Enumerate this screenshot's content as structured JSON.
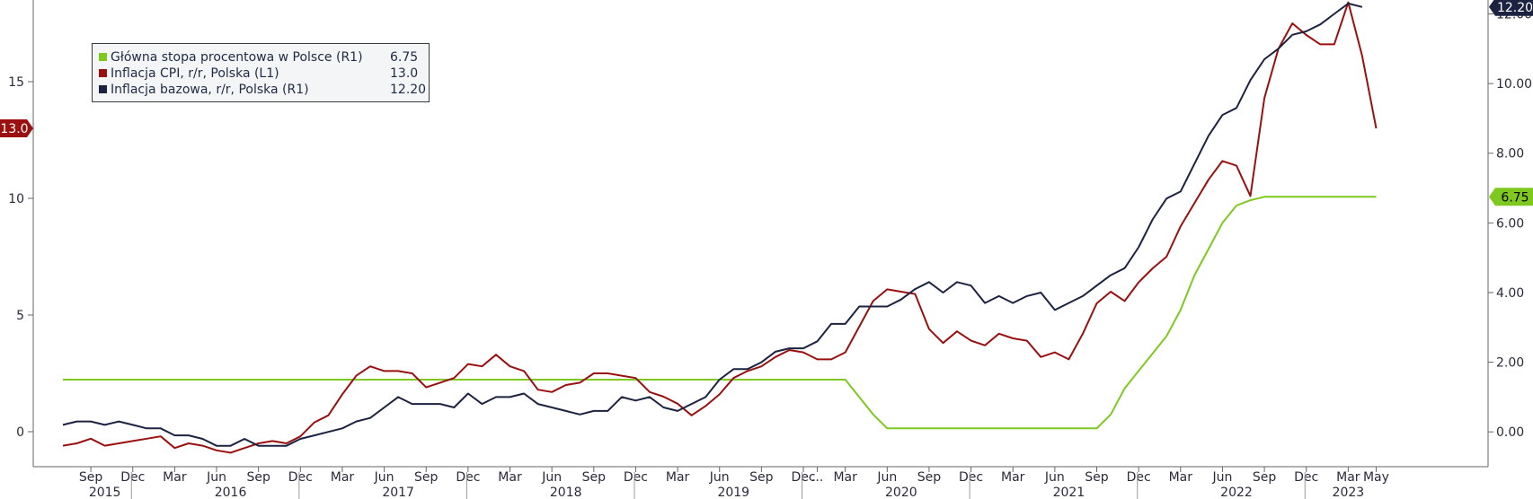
{
  "chart_data": {
    "type": "line",
    "title": "",
    "xlabel": "",
    "ylabel": "",
    "left_axis": {
      "ylim": [
        -1.5,
        18.5
      ],
      "ticks": [
        0,
        5,
        10,
        15
      ]
    },
    "right_axis": {
      "ylim": [
        -1.0,
        12.4
      ],
      "ticks": [
        "0.00",
        "2.00",
        "4.00",
        "6.00",
        "8.00",
        "10.00",
        "12.00"
      ]
    },
    "x_range": [
      "2015-07",
      "2023-06"
    ],
    "month_labels": [
      {
        "label": "Sep",
        "date": "2015-09"
      },
      {
        "label": "Dec",
        "date": "2015-12"
      },
      {
        "label": "Mar",
        "date": "2016-03"
      },
      {
        "label": "Jun",
        "date": "2016-06"
      },
      {
        "label": "Sep",
        "date": "2016-09"
      },
      {
        "label": "Dec",
        "date": "2016-12"
      },
      {
        "label": "Mar",
        "date": "2017-03"
      },
      {
        "label": "Jun",
        "date": "2017-06"
      },
      {
        "label": "Sep",
        "date": "2017-09"
      },
      {
        "label": "Dec",
        "date": "2017-12"
      },
      {
        "label": "Mar",
        "date": "2018-03"
      },
      {
        "label": "Jun",
        "date": "2018-06"
      },
      {
        "label": "Sep",
        "date": "2018-09"
      },
      {
        "label": "Dec",
        "date": "2018-12"
      },
      {
        "label": "Mar",
        "date": "2019-03"
      },
      {
        "label": "Jun",
        "date": "2019-06"
      },
      {
        "label": "Sep",
        "date": "2019-09"
      },
      {
        "label": "Dec",
        "date": "2019-12"
      },
      {
        "label": "...",
        "date": "2020-01"
      },
      {
        "label": "Mar",
        "date": "2020-03"
      },
      {
        "label": "Jun",
        "date": "2020-06"
      },
      {
        "label": "Sep",
        "date": "2020-09"
      },
      {
        "label": "Dec",
        "date": "2020-12"
      },
      {
        "label": "Mar",
        "date": "2021-03"
      },
      {
        "label": "Jun",
        "date": "2021-06"
      },
      {
        "label": "Sep",
        "date": "2021-09"
      },
      {
        "label": "Dec",
        "date": "2021-12"
      },
      {
        "label": "Mar",
        "date": "2022-03"
      },
      {
        "label": "Jun",
        "date": "2022-06"
      },
      {
        "label": "Sep",
        "date": "2022-09"
      },
      {
        "label": "Dec",
        "date": "2022-12"
      },
      {
        "label": "Mar",
        "date": "2023-03"
      },
      {
        "label": "May",
        "date": "2023-05"
      }
    ],
    "year_labels": [
      {
        "label": "2015",
        "date": "2015-10"
      },
      {
        "label": "2016",
        "date": "2016-07"
      },
      {
        "label": "2017",
        "date": "2017-07"
      },
      {
        "label": "2018",
        "date": "2018-07"
      },
      {
        "label": "2019",
        "date": "2019-07"
      },
      {
        "label": "2020",
        "date": "2020-07"
      },
      {
        "label": "2021",
        "date": "2021-07"
      },
      {
        "label": "2022",
        "date": "2022-07"
      },
      {
        "label": "2023",
        "date": "2023-03"
      }
    ],
    "year_separators": [
      "2016-01",
      "2017-01",
      "2018-01",
      "2019-01",
      "2020-01",
      "2021-01",
      "2022-01",
      "2023-01"
    ],
    "series": [
      {
        "name": "Główna stopa procentowa w Polsce (R1)",
        "axis": "right",
        "color": "#7ec820",
        "last_value": "6.75",
        "points": [
          [
            "2015-07",
            1.5
          ],
          [
            "2020-03",
            1.5
          ],
          [
            "2020-04",
            1.0
          ],
          [
            "2020-05",
            0.5
          ],
          [
            "2020-06",
            0.1
          ],
          [
            "2021-09",
            0.1
          ],
          [
            "2021-10",
            0.5
          ],
          [
            "2021-11",
            1.25
          ],
          [
            "2021-12",
            1.75
          ],
          [
            "2022-01",
            2.25
          ],
          [
            "2022-02",
            2.75
          ],
          [
            "2022-03",
            3.5
          ],
          [
            "2022-04",
            4.5
          ],
          [
            "2022-05",
            5.25
          ],
          [
            "2022-06",
            6.0
          ],
          [
            "2022-07",
            6.5
          ],
          [
            "2022-08",
            6.65
          ],
          [
            "2022-09",
            6.75
          ],
          [
            "2023-05",
            6.75
          ]
        ]
      },
      {
        "name": "Inflacja CPI, r/r, Polska (L1)",
        "axis": "left",
        "color": "#9a1010",
        "last_value": "13.0",
        "points": [
          [
            "2015-07",
            -0.6
          ],
          [
            "2015-08",
            -0.5
          ],
          [
            "2015-09",
            -0.3
          ],
          [
            "2015-10",
            -0.6
          ],
          [
            "2015-11",
            -0.5
          ],
          [
            "2015-12",
            -0.4
          ],
          [
            "2016-01",
            -0.3
          ],
          [
            "2016-02",
            -0.2
          ],
          [
            "2016-03",
            -0.7
          ],
          [
            "2016-04",
            -0.5
          ],
          [
            "2016-05",
            -0.6
          ],
          [
            "2016-06",
            -0.8
          ],
          [
            "2016-07",
            -0.9
          ],
          [
            "2016-08",
            -0.7
          ],
          [
            "2016-09",
            -0.5
          ],
          [
            "2016-10",
            -0.4
          ],
          [
            "2016-11",
            -0.5
          ],
          [
            "2016-12",
            -0.2
          ],
          [
            "2017-01",
            0.4
          ],
          [
            "2017-02",
            0.7
          ],
          [
            "2017-03",
            1.6
          ],
          [
            "2017-04",
            2.4
          ],
          [
            "2017-05",
            2.8
          ],
          [
            "2017-06",
            2.6
          ],
          [
            "2017-07",
            2.6
          ],
          [
            "2017-08",
            2.5
          ],
          [
            "2017-09",
            1.9
          ],
          [
            "2017-10",
            2.1
          ],
          [
            "2017-11",
            2.3
          ],
          [
            "2017-12",
            2.9
          ],
          [
            "2018-01",
            2.8
          ],
          [
            "2018-02",
            3.3
          ],
          [
            "2018-03",
            2.8
          ],
          [
            "2018-04",
            2.6
          ],
          [
            "2018-05",
            1.8
          ],
          [
            "2018-06",
            1.7
          ],
          [
            "2018-07",
            2.0
          ],
          [
            "2018-08",
            2.1
          ],
          [
            "2018-09",
            2.5
          ],
          [
            "2018-10",
            2.5
          ],
          [
            "2018-11",
            2.4
          ],
          [
            "2018-12",
            2.3
          ],
          [
            "2019-01",
            1.7
          ],
          [
            "2019-02",
            1.5
          ],
          [
            "2019-03",
            1.2
          ],
          [
            "2019-04",
            0.7
          ],
          [
            "2019-05",
            1.1
          ],
          [
            "2019-06",
            1.6
          ],
          [
            "2019-07",
            2.3
          ],
          [
            "2019-08",
            2.6
          ],
          [
            "2019-09",
            2.8
          ],
          [
            "2019-10",
            3.2
          ],
          [
            "2019-11",
            3.5
          ],
          [
            "2019-12",
            3.4
          ],
          [
            "2020-01",
            3.1
          ],
          [
            "2020-02",
            3.1
          ],
          [
            "2020-03",
            3.4
          ],
          [
            "2020-04",
            4.5
          ],
          [
            "2020-05",
            5.6
          ],
          [
            "2020-06",
            6.1
          ],
          [
            "2020-07",
            6.0
          ],
          [
            "2020-08",
            5.9
          ],
          [
            "2020-09",
            4.4
          ],
          [
            "2020-10",
            3.8
          ],
          [
            "2020-11",
            4.3
          ],
          [
            "2020-12",
            3.9
          ],
          [
            "2021-01",
            3.7
          ],
          [
            "2021-02",
            4.2
          ],
          [
            "2021-03",
            4.0
          ],
          [
            "2021-04",
            3.9
          ],
          [
            "2021-05",
            3.2
          ],
          [
            "2021-06",
            3.4
          ],
          [
            "2021-07",
            3.1
          ],
          [
            "2021-08",
            4.2
          ],
          [
            "2021-09",
            5.5
          ],
          [
            "2021-10",
            6.0
          ],
          [
            "2021-11",
            5.6
          ],
          [
            "2021-12",
            6.4
          ],
          [
            "2022-01",
            7.0
          ],
          [
            "2022-02",
            7.5
          ],
          [
            "2022-03",
            8.8
          ],
          [
            "2022-04",
            9.8
          ],
          [
            "2022-05",
            10.8
          ],
          [
            "2022-06",
            11.6
          ],
          [
            "2022-07",
            11.4
          ],
          [
            "2022-08",
            10.1
          ],
          [
            "2022-09",
            14.3
          ],
          [
            "2022-10",
            16.4
          ],
          [
            "2022-11",
            17.5
          ],
          [
            "2022-12",
            17.0
          ],
          [
            "2023-01",
            16.6
          ],
          [
            "2023-02",
            16.6
          ],
          [
            "2023-03",
            18.4
          ],
          [
            "2023-04",
            16.1
          ],
          [
            "2023-05",
            13.0
          ]
        ]
      },
      {
        "name": "Inflacja bazowa, r/r, Polska (R1)",
        "axis": "right",
        "color": "#1c2340",
        "last_value": "12.20",
        "points": [
          [
            "2015-07",
            0.2
          ],
          [
            "2015-08",
            0.3
          ],
          [
            "2015-09",
            0.3
          ],
          [
            "2015-10",
            0.2
          ],
          [
            "2015-11",
            0.3
          ],
          [
            "2015-12",
            0.2
          ],
          [
            "2016-01",
            0.1
          ],
          [
            "2016-02",
            0.1
          ],
          [
            "2016-03",
            -0.1
          ],
          [
            "2016-04",
            -0.1
          ],
          [
            "2016-05",
            -0.2
          ],
          [
            "2016-06",
            -0.4
          ],
          [
            "2016-07",
            -0.4
          ],
          [
            "2016-08",
            -0.2
          ],
          [
            "2016-09",
            -0.4
          ],
          [
            "2016-10",
            -0.4
          ],
          [
            "2016-11",
            -0.4
          ],
          [
            "2016-12",
            -0.2
          ],
          [
            "2017-01",
            -0.1
          ],
          [
            "2017-02",
            0.0
          ],
          [
            "2017-03",
            0.1
          ],
          [
            "2017-04",
            0.3
          ],
          [
            "2017-05",
            0.4
          ],
          [
            "2017-06",
            0.7
          ],
          [
            "2017-07",
            1.0
          ],
          [
            "2017-08",
            0.8
          ],
          [
            "2017-09",
            0.8
          ],
          [
            "2017-10",
            0.8
          ],
          [
            "2017-11",
            0.7
          ],
          [
            "2017-12",
            1.1
          ],
          [
            "2018-01",
            0.8
          ],
          [
            "2018-02",
            1.0
          ],
          [
            "2018-03",
            1.0
          ],
          [
            "2018-04",
            1.1
          ],
          [
            "2018-05",
            0.8
          ],
          [
            "2018-06",
            0.7
          ],
          [
            "2018-07",
            0.6
          ],
          [
            "2018-08",
            0.5
          ],
          [
            "2018-09",
            0.6
          ],
          [
            "2018-10",
            0.6
          ],
          [
            "2018-11",
            1.0
          ],
          [
            "2018-12",
            0.9
          ],
          [
            "2019-01",
            1.0
          ],
          [
            "2019-02",
            0.7
          ],
          [
            "2019-03",
            0.6
          ],
          [
            "2019-04",
            0.8
          ],
          [
            "2019-05",
            1.0
          ],
          [
            "2019-06",
            1.5
          ],
          [
            "2019-07",
            1.8
          ],
          [
            "2019-08",
            1.8
          ],
          [
            "2019-09",
            2.0
          ],
          [
            "2019-10",
            2.3
          ],
          [
            "2019-11",
            2.4
          ],
          [
            "2019-12",
            2.4
          ],
          [
            "2020-01",
            2.6
          ],
          [
            "2020-02",
            3.1
          ],
          [
            "2020-03",
            3.1
          ],
          [
            "2020-04",
            3.6
          ],
          [
            "2020-05",
            3.6
          ],
          [
            "2020-06",
            3.6
          ],
          [
            "2020-07",
            3.8
          ],
          [
            "2020-08",
            4.1
          ],
          [
            "2020-09",
            4.3
          ],
          [
            "2020-10",
            4.0
          ],
          [
            "2020-11",
            4.3
          ],
          [
            "2020-12",
            4.2
          ],
          [
            "2021-01",
            3.7
          ],
          [
            "2021-02",
            3.9
          ],
          [
            "2021-03",
            3.7
          ],
          [
            "2021-04",
            3.9
          ],
          [
            "2021-05",
            4.0
          ],
          [
            "2021-06",
            3.5
          ],
          [
            "2021-07",
            3.7
          ],
          [
            "2021-08",
            3.9
          ],
          [
            "2021-09",
            4.2
          ],
          [
            "2021-10",
            4.5
          ],
          [
            "2021-11",
            4.7
          ],
          [
            "2021-12",
            5.3
          ],
          [
            "2022-01",
            6.1
          ],
          [
            "2022-02",
            6.7
          ],
          [
            "2022-03",
            6.9
          ],
          [
            "2022-04",
            7.7
          ],
          [
            "2022-05",
            8.5
          ],
          [
            "2022-06",
            9.1
          ],
          [
            "2022-07",
            9.3
          ],
          [
            "2022-08",
            10.1
          ],
          [
            "2022-09",
            10.7
          ],
          [
            "2022-10",
            11.0
          ],
          [
            "2022-11",
            11.4
          ],
          [
            "2022-12",
            11.5
          ],
          [
            "2023-01",
            11.7
          ],
          [
            "2023-02",
            12.0
          ],
          [
            "2023-03",
            12.3
          ],
          [
            "2023-04",
            12.2
          ]
        ]
      }
    ],
    "legend": {
      "placement": "top-left"
    },
    "grid": false
  }
}
